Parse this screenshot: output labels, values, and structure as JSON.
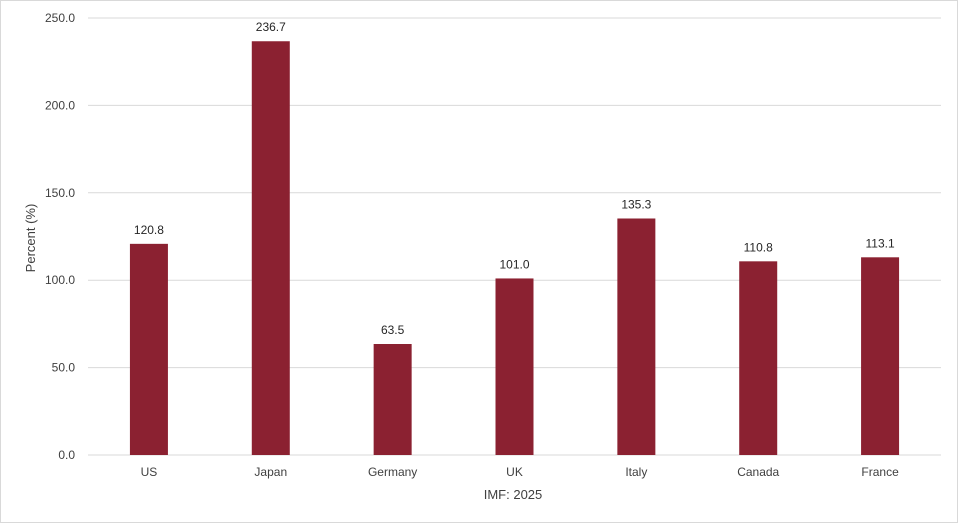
{
  "chart_data": {
    "type": "bar",
    "categories": [
      "US",
      "Japan",
      "Germany",
      "UK",
      "Italy",
      "Canada",
      "France"
    ],
    "series": [
      {
        "values": [
          120.8,
          236.7,
          63.5,
          101.0,
          135.3,
          110.8,
          113.1
        ]
      }
    ],
    "data_labels": [
      "120.8",
      "236.7",
      "63.5",
      "101.0",
      "135.3",
      "110.8",
      "113.1"
    ],
    "title": "",
    "xlabel": "IMF: 2025",
    "ylabel": "Percent (%)",
    "ylim": [
      0,
      250
    ],
    "yticks": [
      0,
      50,
      100,
      150,
      200,
      250
    ],
    "ytick_labels": [
      "0.0",
      "50.0",
      "100.0",
      "150.0",
      "200.0",
      "250.0"
    ],
    "grid": true,
    "legend": "none",
    "bar_color": "#8b2131",
    "grid_color": "#d9d9d9"
  }
}
